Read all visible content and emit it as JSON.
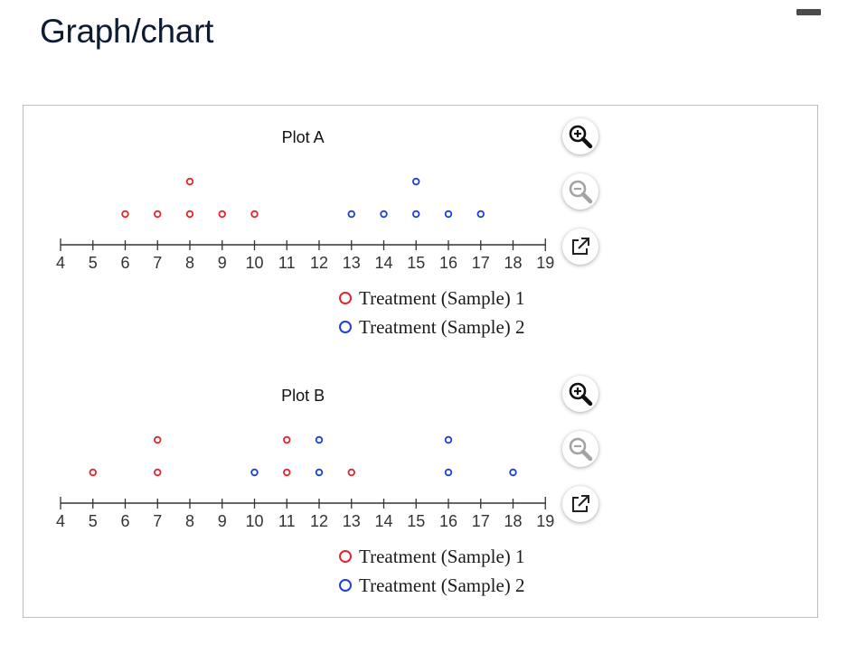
{
  "page": {
    "title": "Graph/chart"
  },
  "toolbar": {
    "zoom_in_icon": "zoom-in-icon",
    "zoom_out_icon": "zoom-out-icon",
    "open_external_icon": "open-external-icon"
  },
  "colors": {
    "sample1": "#e3262b",
    "sample2": "#1b3fe0",
    "axis": "#333333"
  },
  "chart_data": [
    {
      "type": "scatter",
      "title": "Plot A",
      "xlim": [
        4,
        19
      ],
      "ticks": [
        "4",
        "5",
        "6",
        "7",
        "8",
        "9",
        "10",
        "11",
        "12",
        "13",
        "14",
        "15",
        "16",
        "17",
        "18",
        "19"
      ],
      "series": [
        {
          "name": "Treatment (Sample) 1",
          "values": [
            6,
            7,
            8,
            8,
            9,
            10
          ]
        },
        {
          "name": "Treatment (Sample) 2",
          "values": [
            13,
            14,
            15,
            15,
            16,
            17
          ]
        }
      ]
    },
    {
      "type": "scatter",
      "title": "Plot B",
      "xlim": [
        4,
        19
      ],
      "ticks": [
        "4",
        "5",
        "6",
        "7",
        "8",
        "9",
        "10",
        "11",
        "12",
        "13",
        "14",
        "15",
        "16",
        "17",
        "18",
        "19"
      ],
      "series": [
        {
          "name": "Treatment (Sample) 1",
          "values": [
            5,
            7,
            7,
            11,
            11,
            13
          ]
        },
        {
          "name": "Treatment (Sample) 2",
          "values": [
            10,
            12,
            12,
            16,
            16,
            18
          ]
        }
      ]
    }
  ]
}
